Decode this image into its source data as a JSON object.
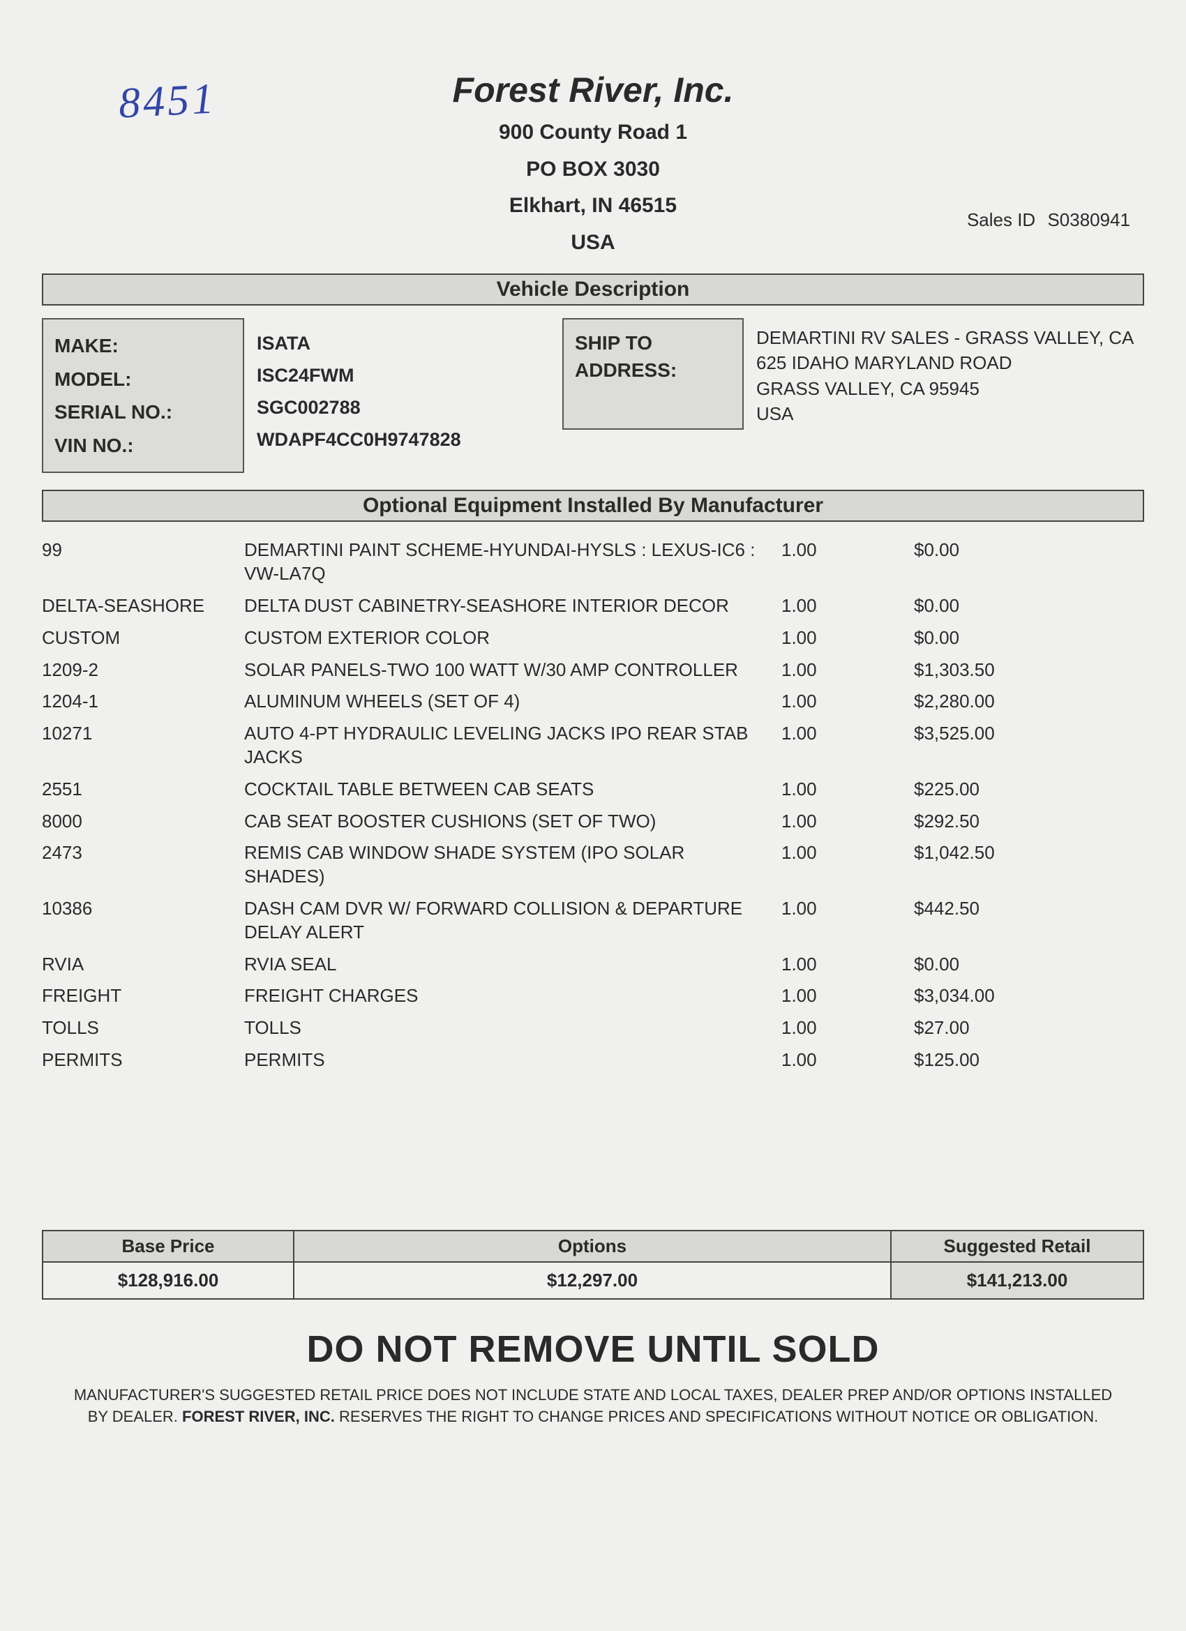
{
  "handwritten_note": "8451",
  "company": {
    "name": "Forest River, Inc.",
    "addr1": "900 County Road 1",
    "addr2": "PO BOX 3030",
    "addr3": "Elkhart, IN 46515",
    "addr4": "USA"
  },
  "sales_id_label": "Sales ID",
  "sales_id_value": "S0380941",
  "section_vehicle": "Vehicle Description",
  "vehicle_labels": {
    "make": "MAKE:",
    "model": "MODEL:",
    "serial": "SERIAL NO.:",
    "vin": "VIN NO.:"
  },
  "vehicle_values": {
    "make": "ISATA",
    "model": "ISC24FWM",
    "serial": "SGC002788",
    "vin": "WDAPF4CC0H9747828"
  },
  "ship_to_label1": "SHIP TO",
  "ship_to_label2": "ADDRESS:",
  "ship_to": {
    "l1": "DEMARTINI RV SALES - GRASS VALLEY, CA",
    "l2": "625 IDAHO MARYLAND ROAD",
    "l3": "GRASS VALLEY, CA 95945",
    "l4": "USA"
  },
  "section_options": "Optional Equipment Installed By Manufacturer",
  "options": [
    {
      "code": "99",
      "desc": "DEMARTINI PAINT SCHEME-HYUNDAI-HYSLS : LEXUS-IC6 : VW-LA7Q",
      "qty": "1.00",
      "price": "$0.00"
    },
    {
      "code": "DELTA-SEASHORE",
      "desc": "DELTA DUST CABINETRY-SEASHORE INTERIOR DECOR",
      "qty": "1.00",
      "price": "$0.00"
    },
    {
      "code": "CUSTOM",
      "desc": "CUSTOM EXTERIOR COLOR",
      "qty": "1.00",
      "price": "$0.00"
    },
    {
      "code": "1209-2",
      "desc": "SOLAR PANELS-TWO 100 WATT W/30 AMP CONTROLLER",
      "qty": "1.00",
      "price": "$1,303.50"
    },
    {
      "code": "1204-1",
      "desc": "ALUMINUM WHEELS (SET OF 4)",
      "qty": "1.00",
      "price": "$2,280.00"
    },
    {
      "code": "10271",
      "desc": "AUTO 4-PT HYDRAULIC LEVELING JACKS IPO REAR STAB JACKS",
      "qty": "1.00",
      "price": "$3,525.00"
    },
    {
      "code": "2551",
      "desc": "COCKTAIL TABLE BETWEEN CAB SEATS",
      "qty": "1.00",
      "price": "$225.00"
    },
    {
      "code": "8000",
      "desc": "CAB SEAT BOOSTER CUSHIONS (SET OF TWO)",
      "qty": "1.00",
      "price": "$292.50"
    },
    {
      "code": "2473",
      "desc": "REMIS CAB WINDOW SHADE SYSTEM (IPO SOLAR SHADES)",
      "qty": "1.00",
      "price": "$1,042.50"
    },
    {
      "code": "10386",
      "desc": "DASH CAM DVR W/ FORWARD COLLISION & DEPARTURE DELAY ALERT",
      "qty": "1.00",
      "price": "$442.50"
    },
    {
      "code": "RVIA",
      "desc": "RVIA SEAL",
      "qty": "1.00",
      "price": "$0.00"
    },
    {
      "code": "FREIGHT",
      "desc": "FREIGHT CHARGES",
      "qty": "1.00",
      "price": "$3,034.00"
    },
    {
      "code": "TOLLS",
      "desc": "TOLLS",
      "qty": "1.00",
      "price": "$27.00"
    },
    {
      "code": "PERMITS",
      "desc": "PERMITS",
      "qty": "1.00",
      "price": "$125.00"
    }
  ],
  "totals": {
    "base_label": "Base Price",
    "base_value": "$128,916.00",
    "options_label": "Options",
    "options_value": "$12,297.00",
    "retail_label": "Suggested Retail",
    "retail_value": "$141,213.00"
  },
  "big_notice": "DO NOT REMOVE UNTIL SOLD",
  "disclaimer_1": "MANUFACTURER'S SUGGESTED RETAIL PRICE DOES NOT INCLUDE STATE AND LOCAL TAXES, DEALER PREP AND/OR OPTIONS INSTALLED BY DEALER. ",
  "disclaimer_bold": "FOREST RIVER, INC.",
  "disclaimer_2": " RESERVES THE RIGHT TO CHANGE PRICES AND SPECIFICATIONS WITHOUT NOTICE OR OBLIGATION."
}
